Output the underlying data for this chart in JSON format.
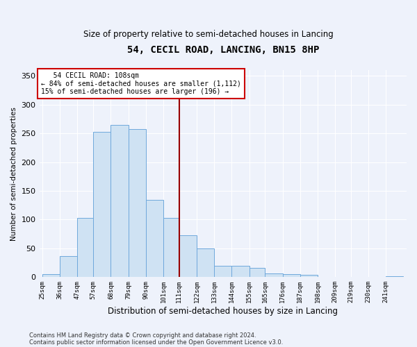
{
  "title": "54, CECIL ROAD, LANCING, BN15 8HP",
  "subtitle": "Size of property relative to semi-detached houses in Lancing",
  "xlabel": "Distribution of semi-detached houses by size in Lancing",
  "ylabel": "Number of semi-detached properties",
  "footnote1": "Contains HM Land Registry data © Crown copyright and database right 2024.",
  "footnote2": "Contains public sector information licensed under the Open Government Licence v3.0.",
  "annotation_line1": "   54 CECIL ROAD: 108sqm",
  "annotation_line2": "← 84% of semi-detached houses are smaller (1,112)",
  "annotation_line3": "15% of semi-detached houses are larger (196) →",
  "vline_color": "#990000",
  "bar_color": "#cfe2f3",
  "bar_edge_color": "#6fa8dc",
  "background_color": "#eef2fb",
  "bins": [
    25,
    36,
    47,
    57,
    68,
    79,
    90,
    101,
    111,
    122,
    133,
    144,
    155,
    165,
    176,
    187,
    198,
    209,
    219,
    230,
    241
  ],
  "counts": [
    5,
    37,
    103,
    253,
    265,
    257,
    134,
    103,
    73,
    50,
    20,
    20,
    16,
    7,
    5,
    4,
    1,
    0,
    1,
    0,
    2
  ],
  "bin_labels": [
    "25sqm",
    "36sqm",
    "47sqm",
    "57sqm",
    "68sqm",
    "79sqm",
    "90sqm",
    "101sqm",
    "111sqm",
    "122sqm",
    "133sqm",
    "144sqm",
    "155sqm",
    "165sqm",
    "176sqm",
    "187sqm",
    "198sqm",
    "209sqm",
    "219sqm",
    "230sqm",
    "241sqm"
  ],
  "ylim": [
    0,
    360
  ],
  "yticks": [
    0,
    50,
    100,
    150,
    200,
    250,
    300,
    350
  ],
  "vline_pos": 111
}
